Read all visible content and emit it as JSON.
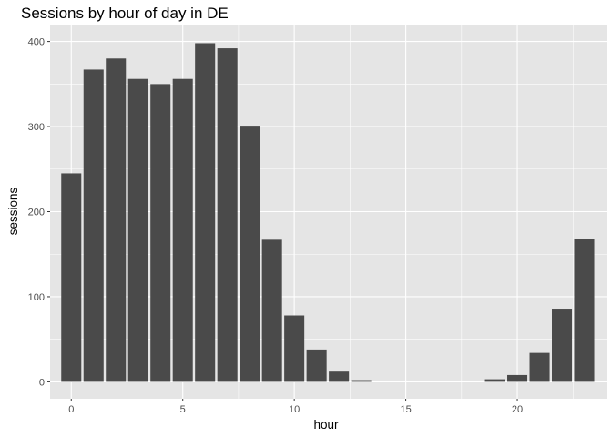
{
  "chart_data": {
    "type": "bar",
    "title": "Sessions by hour of day in DE",
    "xlabel": "hour",
    "ylabel": "sessions",
    "x": [
      0,
      1,
      2,
      3,
      4,
      5,
      6,
      7,
      8,
      9,
      10,
      11,
      12,
      13,
      14,
      15,
      16,
      17,
      18,
      19,
      20,
      21,
      22,
      23
    ],
    "values": [
      245,
      367,
      380,
      356,
      350,
      356,
      398,
      392,
      301,
      167,
      78,
      38,
      12,
      2,
      0,
      0,
      0,
      0,
      0,
      3,
      8,
      34,
      86,
      168
    ],
    "xlim": [
      -0.95,
      24.0
    ],
    "ylim": [
      -19.9,
      419.9
    ],
    "xticks": [
      0,
      5,
      10,
      15,
      20
    ],
    "yticks": [
      0,
      100,
      200,
      300,
      400
    ],
    "grid": true,
    "legend": "none"
  },
  "colors": {
    "bar": "#4a4a4a",
    "panel_background": "#e5e5e5",
    "grid_line": "#ffffff",
    "tick_label": "#4d4d4d",
    "tick_mark": "#333333"
  }
}
